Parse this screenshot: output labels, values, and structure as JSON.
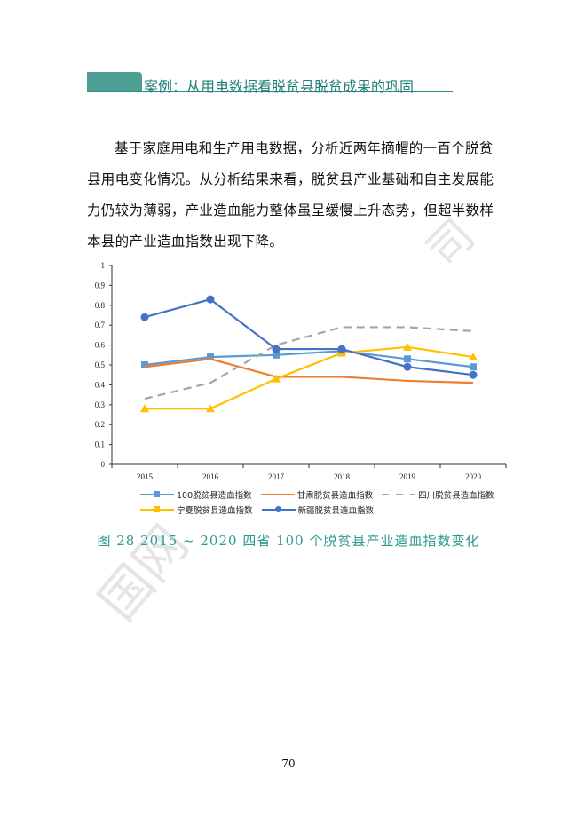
{
  "heading": "案例：从用电数据看脱贫县脱贫成果的巩固",
  "paragraph": "基于家庭用电和生产用电数据，分析近两年摘帽的一百个脱贫县用电变化情况。从分析结果来看，脱贫县产业基础和自主发展能力仍较为薄弱，产业造血能力整体虽呈缓慢上升态势，但超半数样本县的产业造血指数出现下降。",
  "watermark": "国网",
  "caption": "图 28 2015 ~ 2020 四省 100 个脱贫县产业造血指数变化",
  "page_number": "70",
  "chart_data": {
    "type": "line",
    "categories": [
      "2015",
      "2016",
      "2017",
      "2018",
      "2019",
      "2020"
    ],
    "ylim": [
      0,
      1
    ],
    "yticks": [
      "0",
      "0.1",
      "0.2",
      "0.3",
      "0.4",
      "0.5",
      "0.6",
      "0.7",
      "0.8",
      "0.9",
      "1"
    ],
    "grid": false,
    "legend": "bottom",
    "series": [
      {
        "name": "100脱贫县造血指数",
        "color": "#5b9bd5",
        "marker": "square",
        "dash": false,
        "values": [
          0.5,
          0.54,
          0.55,
          0.57,
          0.53,
          0.49
        ]
      },
      {
        "name": "甘肃脱贫县造血指数",
        "color": "#ed7d31",
        "marker": "none",
        "dash": false,
        "values": [
          0.49,
          0.53,
          0.44,
          0.44,
          0.42,
          0.41
        ]
      },
      {
        "name": "四川脱贫县造血指数",
        "color": "#a5a5a5",
        "marker": "none",
        "dash": true,
        "values": [
          0.33,
          0.41,
          0.6,
          0.69,
          0.69,
          0.67
        ]
      },
      {
        "name": "宁夏脱贫县造血指数",
        "color": "#ffc000",
        "marker": "triangle",
        "dash": false,
        "values": [
          0.28,
          0.28,
          0.43,
          0.56,
          0.59,
          0.54
        ]
      },
      {
        "name": "新疆脱贫县造血指数",
        "color": "#4472c4",
        "marker": "circle",
        "dash": false,
        "values": [
          0.74,
          0.83,
          0.58,
          0.58,
          0.49,
          0.45
        ]
      }
    ]
  }
}
